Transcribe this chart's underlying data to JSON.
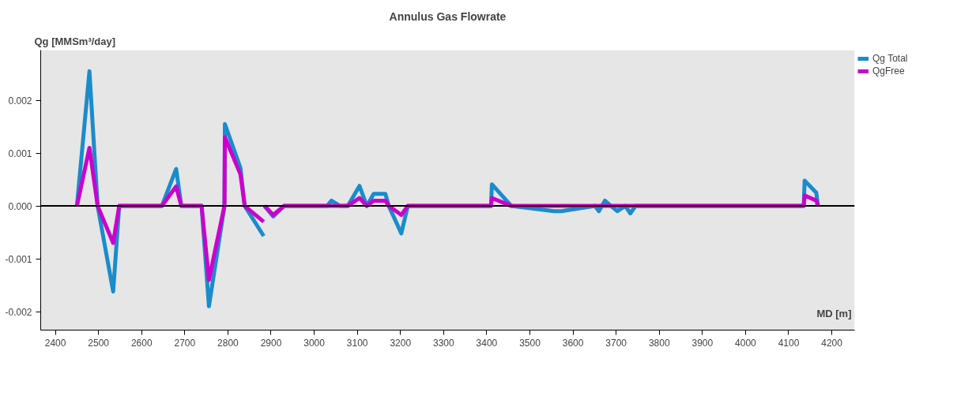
{
  "chart_data": {
    "type": "line",
    "title": "Annulus Gas Flowrate",
    "xlabel": "MD [m]",
    "ylabel": "Qg [MMSm³/day]",
    "xlim": [
      2366,
      4253
    ],
    "ylim": [
      -0.00235,
      0.00295
    ],
    "xticks": [
      2400,
      2500,
      2600,
      2700,
      2800,
      2900,
      3000,
      3100,
      3200,
      3300,
      3400,
      3500,
      3600,
      3700,
      3800,
      3900,
      4000,
      4100,
      4200
    ],
    "yticks": [
      {
        "value": -0.002,
        "label": "-0.002"
      },
      {
        "value": -0.001,
        "label": "-0.001"
      },
      {
        "value": 0,
        "label": "0.000"
      },
      {
        "value": 0.001,
        "label": "0.001"
      },
      {
        "value": 0.002,
        "label": "0.002"
      }
    ],
    "legend": "top right",
    "marker": "none",
    "line_style": "solid",
    "ref_lines": [
      {
        "axis": "y",
        "value": 0,
        "color": "#000000"
      }
    ],
    "series": [
      {
        "name": "Qg Total",
        "color": "#1a8ccc",
        "x": [
          2450,
          2479,
          2498,
          2534,
          2548,
          2647,
          2680,
          2692,
          2739,
          2756,
          2792,
          2793,
          2829,
          2839,
          2883,
          2884,
          2885,
          2905,
          2930,
          3030,
          3040,
          3060,
          3078,
          3105,
          3122,
          3138,
          3165,
          3173,
          3202,
          3217,
          3410,
          3412,
          3457,
          3556,
          3573,
          3651,
          3660,
          3674,
          3688,
          3703,
          3721,
          3733,
          3745,
          4135,
          4137,
          4164,
          4168
        ],
        "values": [
          0,
          0.00255,
          0,
          -0.00162,
          0,
          0,
          0.0007,
          0,
          0,
          -0.0019,
          0,
          0.00155,
          0.00072,
          0,
          -0.00057,
          null,
          0,
          -0.0002,
          0,
          0,
          0.0001,
          0,
          0,
          0.00038,
          0,
          0.00023,
          0.00023,
          0,
          -0.00052,
          0,
          0,
          0.00041,
          0,
          -0.0001,
          -0.0001,
          0,
          -0.0001,
          0.0001,
          0,
          -0.0001,
          0,
          -0.00014,
          0,
          0,
          0.00048,
          0.00025,
          0
        ]
      },
      {
        "name": "QgFree",
        "color": "#cc00cc",
        "x": [
          2450,
          2479,
          2498,
          2534,
          2548,
          2647,
          2680,
          2692,
          2739,
          2756,
          2792,
          2793,
          2829,
          2839,
          2883,
          2884,
          2885,
          2905,
          2930,
          3078,
          3105,
          3122,
          3138,
          3165,
          3173,
          3202,
          3217,
          3410,
          3412,
          3457,
          3660,
          3674,
          3688,
          3721,
          3733,
          3745,
          4135,
          4137,
          4164,
          4168
        ],
        "values": [
          0,
          0.0011,
          0,
          -0.0007,
          0,
          0,
          0.00037,
          0,
          0,
          -0.0014,
          0,
          0.0013,
          0.0006,
          0,
          -0.0003,
          null,
          0,
          -0.00017,
          0,
          0,
          0.00015,
          0,
          0.0001,
          0.0001,
          0,
          -0.00017,
          0,
          0,
          0.00015,
          0,
          0,
          0,
          0,
          0,
          0,
          0,
          0,
          0.0002,
          0.0001,
          0
        ]
      }
    ]
  }
}
